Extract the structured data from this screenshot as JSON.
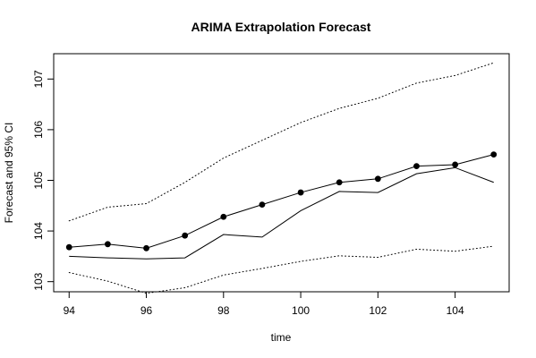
{
  "chart_data": {
    "type": "line",
    "title": "ARIMA Extrapolation Forecast",
    "xlabel": "time",
    "ylabel": "Forecast and 95% CI",
    "xlim": [
      93.6,
      105.4
    ],
    "ylim": [
      102.8,
      107.5
    ],
    "x_ticks": [
      94,
      96,
      98,
      100,
      102,
      104
    ],
    "y_ticks": [
      103,
      104,
      105,
      106,
      107
    ],
    "x": [
      94,
      95,
      96,
      97,
      98,
      99,
      100,
      101,
      102,
      103,
      104,
      105
    ],
    "series": [
      {
        "style": "solid",
        "values": [
          103.5,
          103.47,
          103.45,
          103.47,
          103.93,
          103.88,
          104.4,
          104.78,
          104.76,
          105.13,
          105.25,
          104.96
        ]
      },
      {
        "style": "line-with-points",
        "values": [
          103.68,
          103.74,
          103.66,
          103.91,
          104.28,
          104.52,
          104.76,
          104.96,
          105.03,
          105.28,
          105.31,
          105.51
        ]
      },
      {
        "style": "dotted",
        "values": [
          104.2,
          104.47,
          104.54,
          104.96,
          105.44,
          105.79,
          106.14,
          106.42,
          106.62,
          106.92,
          107.07,
          107.32
        ]
      },
      {
        "style": "dotted",
        "values": [
          103.18,
          103.01,
          102.77,
          102.88,
          103.13,
          103.26,
          103.4,
          103.51,
          103.48,
          103.64,
          103.6,
          103.7
        ]
      }
    ]
  }
}
